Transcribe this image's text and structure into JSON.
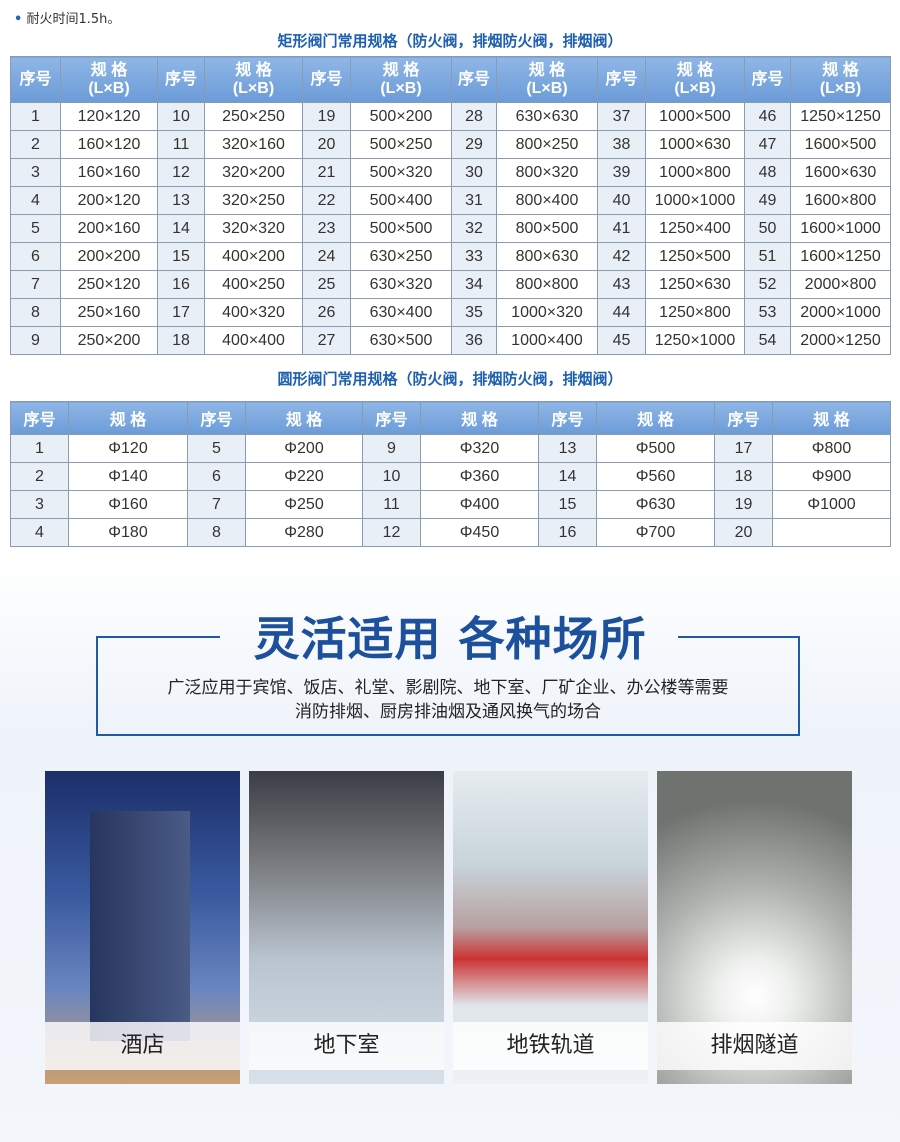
{
  "note": {
    "bullet": "•",
    "text": "耐火时间1.5h。"
  },
  "rect_table": {
    "title": "矩形阀门常用规格（防火阀，排烟防火阀，排烟阀）",
    "header_index": "序号",
    "header_spec": "规 格",
    "header_spec_sub": "(L×B)",
    "rows": [
      [
        "1",
        "120×120",
        "10",
        "250×250",
        "19",
        "500×200",
        "28",
        "630×630",
        "37",
        "1000×500",
        "46",
        "1250×1250"
      ],
      [
        "2",
        "160×120",
        "11",
        "320×160",
        "20",
        "500×250",
        "29",
        "800×250",
        "38",
        "1000×630",
        "47",
        "1600×500"
      ],
      [
        "3",
        "160×160",
        "12",
        "320×200",
        "21",
        "500×320",
        "30",
        "800×320",
        "39",
        "1000×800",
        "48",
        "1600×630"
      ],
      [
        "4",
        "200×120",
        "13",
        "320×250",
        "22",
        "500×400",
        "31",
        "800×400",
        "40",
        "1000×1000",
        "49",
        "1600×800"
      ],
      [
        "5",
        "200×160",
        "14",
        "320×320",
        "23",
        "500×500",
        "32",
        "800×500",
        "41",
        "1250×400",
        "50",
        "1600×1000"
      ],
      [
        "6",
        "200×200",
        "15",
        "400×200",
        "24",
        "630×250",
        "33",
        "800×630",
        "42",
        "1250×500",
        "51",
        "1600×1250"
      ],
      [
        "7",
        "250×120",
        "16",
        "400×250",
        "25",
        "630×320",
        "34",
        "800×800",
        "43",
        "1250×630",
        "52",
        "2000×800"
      ],
      [
        "8",
        "250×160",
        "17",
        "400×320",
        "26",
        "630×400",
        "35",
        "1000×320",
        "44",
        "1250×800",
        "53",
        "2000×1000"
      ],
      [
        "9",
        "250×200",
        "18",
        "400×400",
        "27",
        "630×500",
        "36",
        "1000×400",
        "45",
        "1250×1000",
        "54",
        "2000×1250"
      ]
    ]
  },
  "round_table": {
    "title": "圆形阀门常用规格（防火阀，排烟防火阀，排烟阀）",
    "header_index": "序号",
    "header_spec": "规 格",
    "rows": [
      [
        "1",
        "Φ120",
        "5",
        "Φ200",
        "9",
        "Φ320",
        "13",
        "Φ500",
        "17",
        "Φ800"
      ],
      [
        "2",
        "Φ140",
        "6",
        "Φ220",
        "10",
        "Φ360",
        "14",
        "Φ560",
        "18",
        "Φ900"
      ],
      [
        "3",
        "Φ160",
        "7",
        "Φ250",
        "11",
        "Φ400",
        "15",
        "Φ630",
        "19",
        "Φ1000"
      ],
      [
        "4",
        "Φ180",
        "8",
        "Φ280",
        "12",
        "Φ450",
        "16",
        "Φ700",
        "20",
        ""
      ]
    ]
  },
  "usage": {
    "title": "灵活适用 各种场所",
    "line1": "广泛应用于宾馆、饭店、礼堂、影剧院、地下室、厂矿企业、办公楼等需要",
    "line2": "消防排烟、厨房排油烟及通风换气的场合"
  },
  "scenes": [
    {
      "label": "酒店"
    },
    {
      "label": "地下室"
    },
    {
      "label": "地铁轨道"
    },
    {
      "label": "排烟隧道"
    }
  ],
  "colors": {
    "accent": "#1e5aa8",
    "header": "#7aa7de"
  }
}
